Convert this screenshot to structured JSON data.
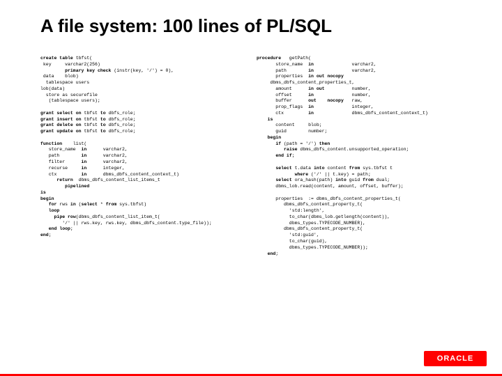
{
  "title": "A file system: 100 lines of PL/SQL",
  "logo_text": "ORACLE",
  "colors": {
    "background": "#ffffff",
    "title": "#000000",
    "code": "#000000",
    "accent": "#ff0000",
    "logo_bg": "#ff0000",
    "logo_fg": "#ffffff"
  },
  "typography": {
    "title_fontsize": 26,
    "title_weight": "bold",
    "code_fontsize": 6.5,
    "code_family": "Courier New"
  },
  "left_code": "create table tbfst(\n key     varchar2(256)\n         primary key check (instr(key, '/') = 0),\n data    blob)\n  tablespace users\nlob(data)\n  store as securefile\n   (tablespace users);\n\ngrant select on tbfst to dbfs_role;\ngrant insert on tbfst to dbfs_role;\ngrant delete on tbfst to dbfs_role;\ngrant update on tbfst to dbfs_role;\n\nfunction    list(\n   store_name  in      varchar2,\n   path        in      varchar2,\n   filter      in      varchar2,\n   recurse     in      integer,\n   ctx         in      dbms_dbfs_content_context_t)\n      return  dbms_dbfs_content_list_items_t\n         pipelined\nis\nbegin\n   for rws in (select * from sys.tbfst)\n   loop\n     pipe row(dbms_dbfs_content_list_item_t(\n        '/' || rws.key, rws.key, dbms_dbfs_content.type_file));\n   end loop;\nend;",
  "right_code": "procedure   getPath(\n       store_name  in              varchar2,\n       path        in              varchar2,\n       properties  in out nocopy\n     dbms_dbfs_content_properties_t,\n       amount      in out          number,\n       offset      in              number,\n       buffer      out    nocopy   raw,\n       prop_flags  in              integer,\n       ctx         in              dbms_dbfs_content_context_t)\n    is\n       content     blob;\n       guid        number;\n    begin\n       if (path = '/') then\n          raise dbms_dbfs_content.unsupported_operation;\n       end if;\n\n       select t.data into content from sys.tbfst t\n              where ('/' || t.key) = path;\n       select ora_hash(path) into guid from dual;\n       dbms_lob.read(content, amount, offset, buffer);\n\n       properties  := dbms_dbfs_content_properties_t(\n          dbms_dbfs_content_property_t(\n            'std:length',\n            to_char(dbms_lob.getlength(content)),\n            dbms_types.TYPECODE_NUMBER),\n          dbms_dbfs_content_property_t(\n            'std:guid',\n            to_char(guid),\n            dbms_types.TYPECODE_NUMBER));\n    end;"
}
